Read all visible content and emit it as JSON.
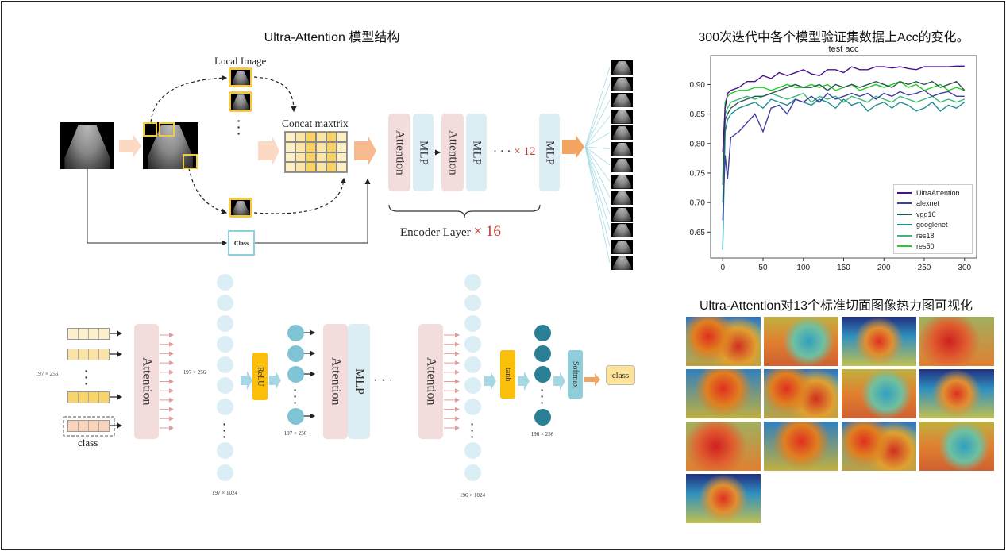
{
  "left_title": "Ultra-Attention 模型结构",
  "top_diagram": {
    "local_image": "Local Image",
    "concat": "Concat maxtrix",
    "class_box": "Class",
    "attention": "Attention",
    "mlp": "MLP",
    "repeat_mark": "× 12",
    "encoder_label": "Encoder Layer",
    "encoder_repeat": "× 16",
    "thumbnail_count": 13
  },
  "bottom_diagram": {
    "dim_input": "197 × 256",
    "dim_hidden1": "197 × 256",
    "dim_neurons1": "197 × 1024",
    "dim_relu_out": "197 × 256",
    "dim_neurons2": "196 × 1024",
    "dim_tanh_out": "196 × 256",
    "class_token": "class",
    "attention": "Attention",
    "mlp": "MLP",
    "relu": "ReLU",
    "tanh": "tanh",
    "softmax": "Softmax",
    "output": "class",
    "ellipsis": "· · ·"
  },
  "right": {
    "chart_title_cn": "300次迭代中各个模型验证集数据上Acc的变化。",
    "heatmap_title": "Ultra-Attention对13个标准切面图像热力图可视化",
    "heatmap_count": 13
  },
  "chart_data": {
    "type": "line",
    "title": "test acc",
    "xlabel": "",
    "ylabel": "",
    "xlim": [
      -15,
      315
    ],
    "ylim": [
      0.606,
      0.949
    ],
    "xticks": [
      "0",
      "50",
      "100",
      "150",
      "200",
      "250",
      "300"
    ],
    "yticks": [
      "0.65",
      "0.70",
      "0.75",
      "0.80",
      "0.85",
      "0.90"
    ],
    "legend_position": "bottom-right",
    "x": [
      0,
      3,
      6,
      10,
      20,
      30,
      40,
      50,
      60,
      70,
      80,
      90,
      100,
      110,
      120,
      130,
      140,
      150,
      160,
      170,
      180,
      190,
      200,
      210,
      220,
      230,
      240,
      250,
      260,
      270,
      280,
      290,
      300
    ],
    "series": [
      {
        "name": "UltraAttention",
        "color": "#4a0f8c",
        "values": [
          0.785,
          0.86,
          0.885,
          0.89,
          0.895,
          0.905,
          0.905,
          0.915,
          0.91,
          0.92,
          0.915,
          0.92,
          0.925,
          0.918,
          0.915,
          0.925,
          0.925,
          0.92,
          0.93,
          0.925,
          0.925,
          0.93,
          0.93,
          0.928,
          0.93,
          0.927,
          0.925,
          0.93,
          0.93,
          0.93,
          0.93,
          0.931,
          0.931
        ]
      },
      {
        "name": "alexnet",
        "color": "#3d3f9e",
        "values": [
          0.67,
          0.78,
          0.74,
          0.81,
          0.82,
          0.835,
          0.85,
          0.82,
          0.86,
          0.865,
          0.85,
          0.875,
          0.87,
          0.88,
          0.87,
          0.885,
          0.875,
          0.88,
          0.885,
          0.88,
          0.885,
          0.875,
          0.885,
          0.88,
          0.888,
          0.882,
          0.885,
          0.89,
          0.88,
          0.885,
          0.888,
          0.88,
          0.88
        ]
      },
      {
        "name": "vgg16",
        "color": "#2f5553",
        "values": [
          0.73,
          0.84,
          0.85,
          0.86,
          0.87,
          0.875,
          0.88,
          0.88,
          0.885,
          0.89,
          0.895,
          0.9,
          0.895,
          0.895,
          0.9,
          0.89,
          0.9,
          0.895,
          0.9,
          0.895,
          0.9,
          0.905,
          0.9,
          0.895,
          0.905,
          0.9,
          0.905,
          0.9,
          0.905,
          0.895,
          0.9,
          0.905,
          0.89
        ]
      },
      {
        "name": "googlenet",
        "color": "#1f8f8f",
        "values": [
          0.62,
          0.82,
          0.84,
          0.85,
          0.86,
          0.865,
          0.87,
          0.86,
          0.875,
          0.87,
          0.865,
          0.875,
          0.87,
          0.865,
          0.875,
          0.87,
          0.86,
          0.875,
          0.865,
          0.87,
          0.855,
          0.865,
          0.87,
          0.86,
          0.87,
          0.865,
          0.855,
          0.86,
          0.87,
          0.855,
          0.865,
          0.86,
          0.87
        ]
      },
      {
        "name": "res18",
        "color": "#3cb878",
        "values": [
          0.7,
          0.85,
          0.86,
          0.87,
          0.875,
          0.88,
          0.875,
          0.88,
          0.885,
          0.88,
          0.875,
          0.88,
          0.885,
          0.87,
          0.88,
          0.875,
          0.88,
          0.87,
          0.88,
          0.875,
          0.87,
          0.88,
          0.875,
          0.87,
          0.88,
          0.875,
          0.87,
          0.875,
          0.88,
          0.87,
          0.875,
          0.87,
          0.875
        ]
      },
      {
        "name": "res50",
        "color": "#22cc22",
        "values": [
          0.74,
          0.87,
          0.88,
          0.885,
          0.89,
          0.89,
          0.895,
          0.895,
          0.89,
          0.895,
          0.9,
          0.895,
          0.895,
          0.9,
          0.895,
          0.9,
          0.89,
          0.895,
          0.9,
          0.89,
          0.895,
          0.9,
          0.895,
          0.9,
          0.905,
          0.895,
          0.9,
          0.89,
          0.895,
          0.9,
          0.89,
          0.895,
          0.89
        ]
      }
    ]
  }
}
